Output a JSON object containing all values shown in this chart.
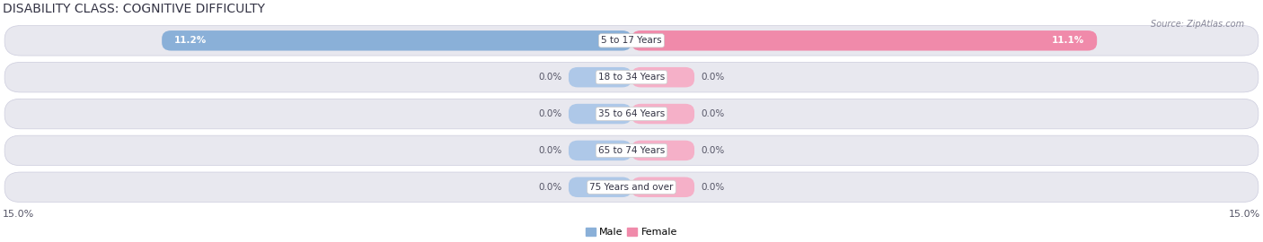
{
  "title": "DISABILITY CLASS: COGNITIVE DIFFICULTY",
  "source_text": "Source: ZipAtlas.com",
  "categories": [
    "5 to 17 Years",
    "18 to 34 Years",
    "35 to 64 Years",
    "65 to 74 Years",
    "75 Years and over"
  ],
  "male_values": [
    11.2,
    0.0,
    0.0,
    0.0,
    0.0
  ],
  "female_values": [
    11.1,
    0.0,
    0.0,
    0.0,
    0.0
  ],
  "male_stub": 1.5,
  "female_stub": 1.5,
  "max_val": 15.0,
  "male_color": "#8ab0d8",
  "female_color": "#f08aaa",
  "male_stub_color": "#aec8e8",
  "female_stub_color": "#f5b0c8",
  "row_bg_color": "#e8e8ef",
  "title_fontsize": 10,
  "label_fontsize": 7.5,
  "value_fontsize": 7.5,
  "legend_fontsize": 8,
  "axis_label_fontsize": 8,
  "background_color": "#ffffff"
}
